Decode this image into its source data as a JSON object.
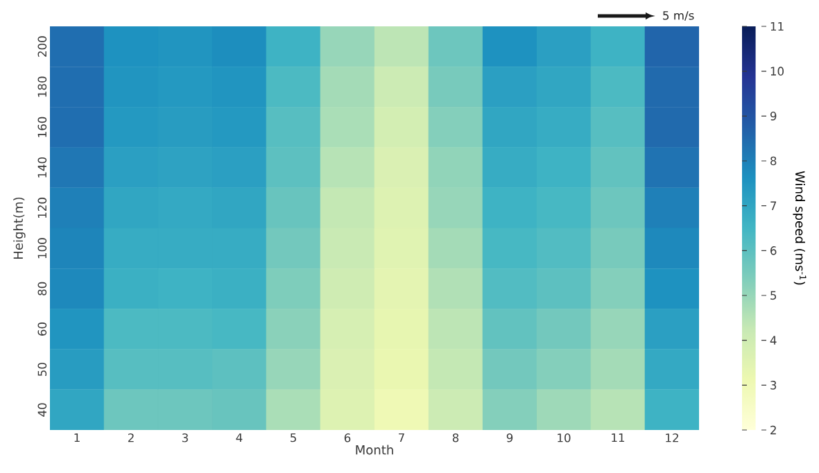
{
  "chart_data": {
    "type": "heatmap",
    "xlabel": "Month",
    "ylabel": "Height(m)",
    "clabel": "Wind speed (ms$^{-1}$)",
    "categories": [
      "1",
      "2",
      "3",
      "4",
      "5",
      "6",
      "7",
      "8",
      "9",
      "10",
      "11",
      "12"
    ],
    "y_categories": [
      "200",
      "180",
      "160",
      "140",
      "120",
      "100",
      "80",
      "60",
      "50",
      "40"
    ],
    "cells": [
      [
        8.4,
        7.6,
        7.5,
        7.7,
        6.6,
        5.0,
        4.4,
        5.7,
        7.6,
        7.2,
        6.6,
        8.6
      ],
      [
        8.4,
        7.5,
        7.4,
        7.5,
        6.3,
        4.8,
        4.1,
        5.5,
        7.2,
        7.0,
        6.3,
        8.5
      ],
      [
        8.4,
        7.4,
        7.3,
        7.4,
        6.1,
        4.7,
        3.9,
        5.3,
        7.0,
        6.8,
        6.1,
        8.5
      ],
      [
        8.2,
        7.2,
        7.1,
        7.2,
        6.0,
        4.5,
        3.7,
        5.1,
        6.8,
        6.6,
        5.9,
        8.3
      ],
      [
        8.0,
        7.0,
        6.9,
        7.0,
        5.8,
        4.3,
        3.6,
        5.0,
        6.6,
        6.4,
        5.7,
        8.0
      ],
      [
        7.9,
        6.8,
        6.8,
        6.8,
        5.6,
        4.2,
        3.5,
        4.8,
        6.4,
        6.2,
        5.5,
        7.8
      ],
      [
        7.8,
        6.7,
        6.6,
        6.7,
        5.4,
        4.0,
        3.4,
        4.6,
        6.2,
        6.0,
        5.3,
        7.6
      ],
      [
        7.5,
        6.3,
        6.3,
        6.4,
        5.2,
        3.8,
        3.3,
        4.4,
        5.9,
        5.6,
        5.0,
        7.2
      ],
      [
        7.3,
        6.1,
        6.1,
        6.0,
        5.0,
        3.7,
        3.2,
        4.3,
        5.6,
        5.3,
        4.8,
        6.9
      ],
      [
        7.0,
        5.7,
        5.7,
        5.8,
        4.7,
        3.6,
        3.0,
        4.1,
        5.3,
        4.9,
        4.5,
        6.6
      ]
    ],
    "clim": [
      2,
      11
    ],
    "cticks": [
      2,
      3,
      4,
      5,
      6,
      7,
      8,
      9,
      10,
      11
    ],
    "annotations": [
      "5 m/s"
    ]
  }
}
